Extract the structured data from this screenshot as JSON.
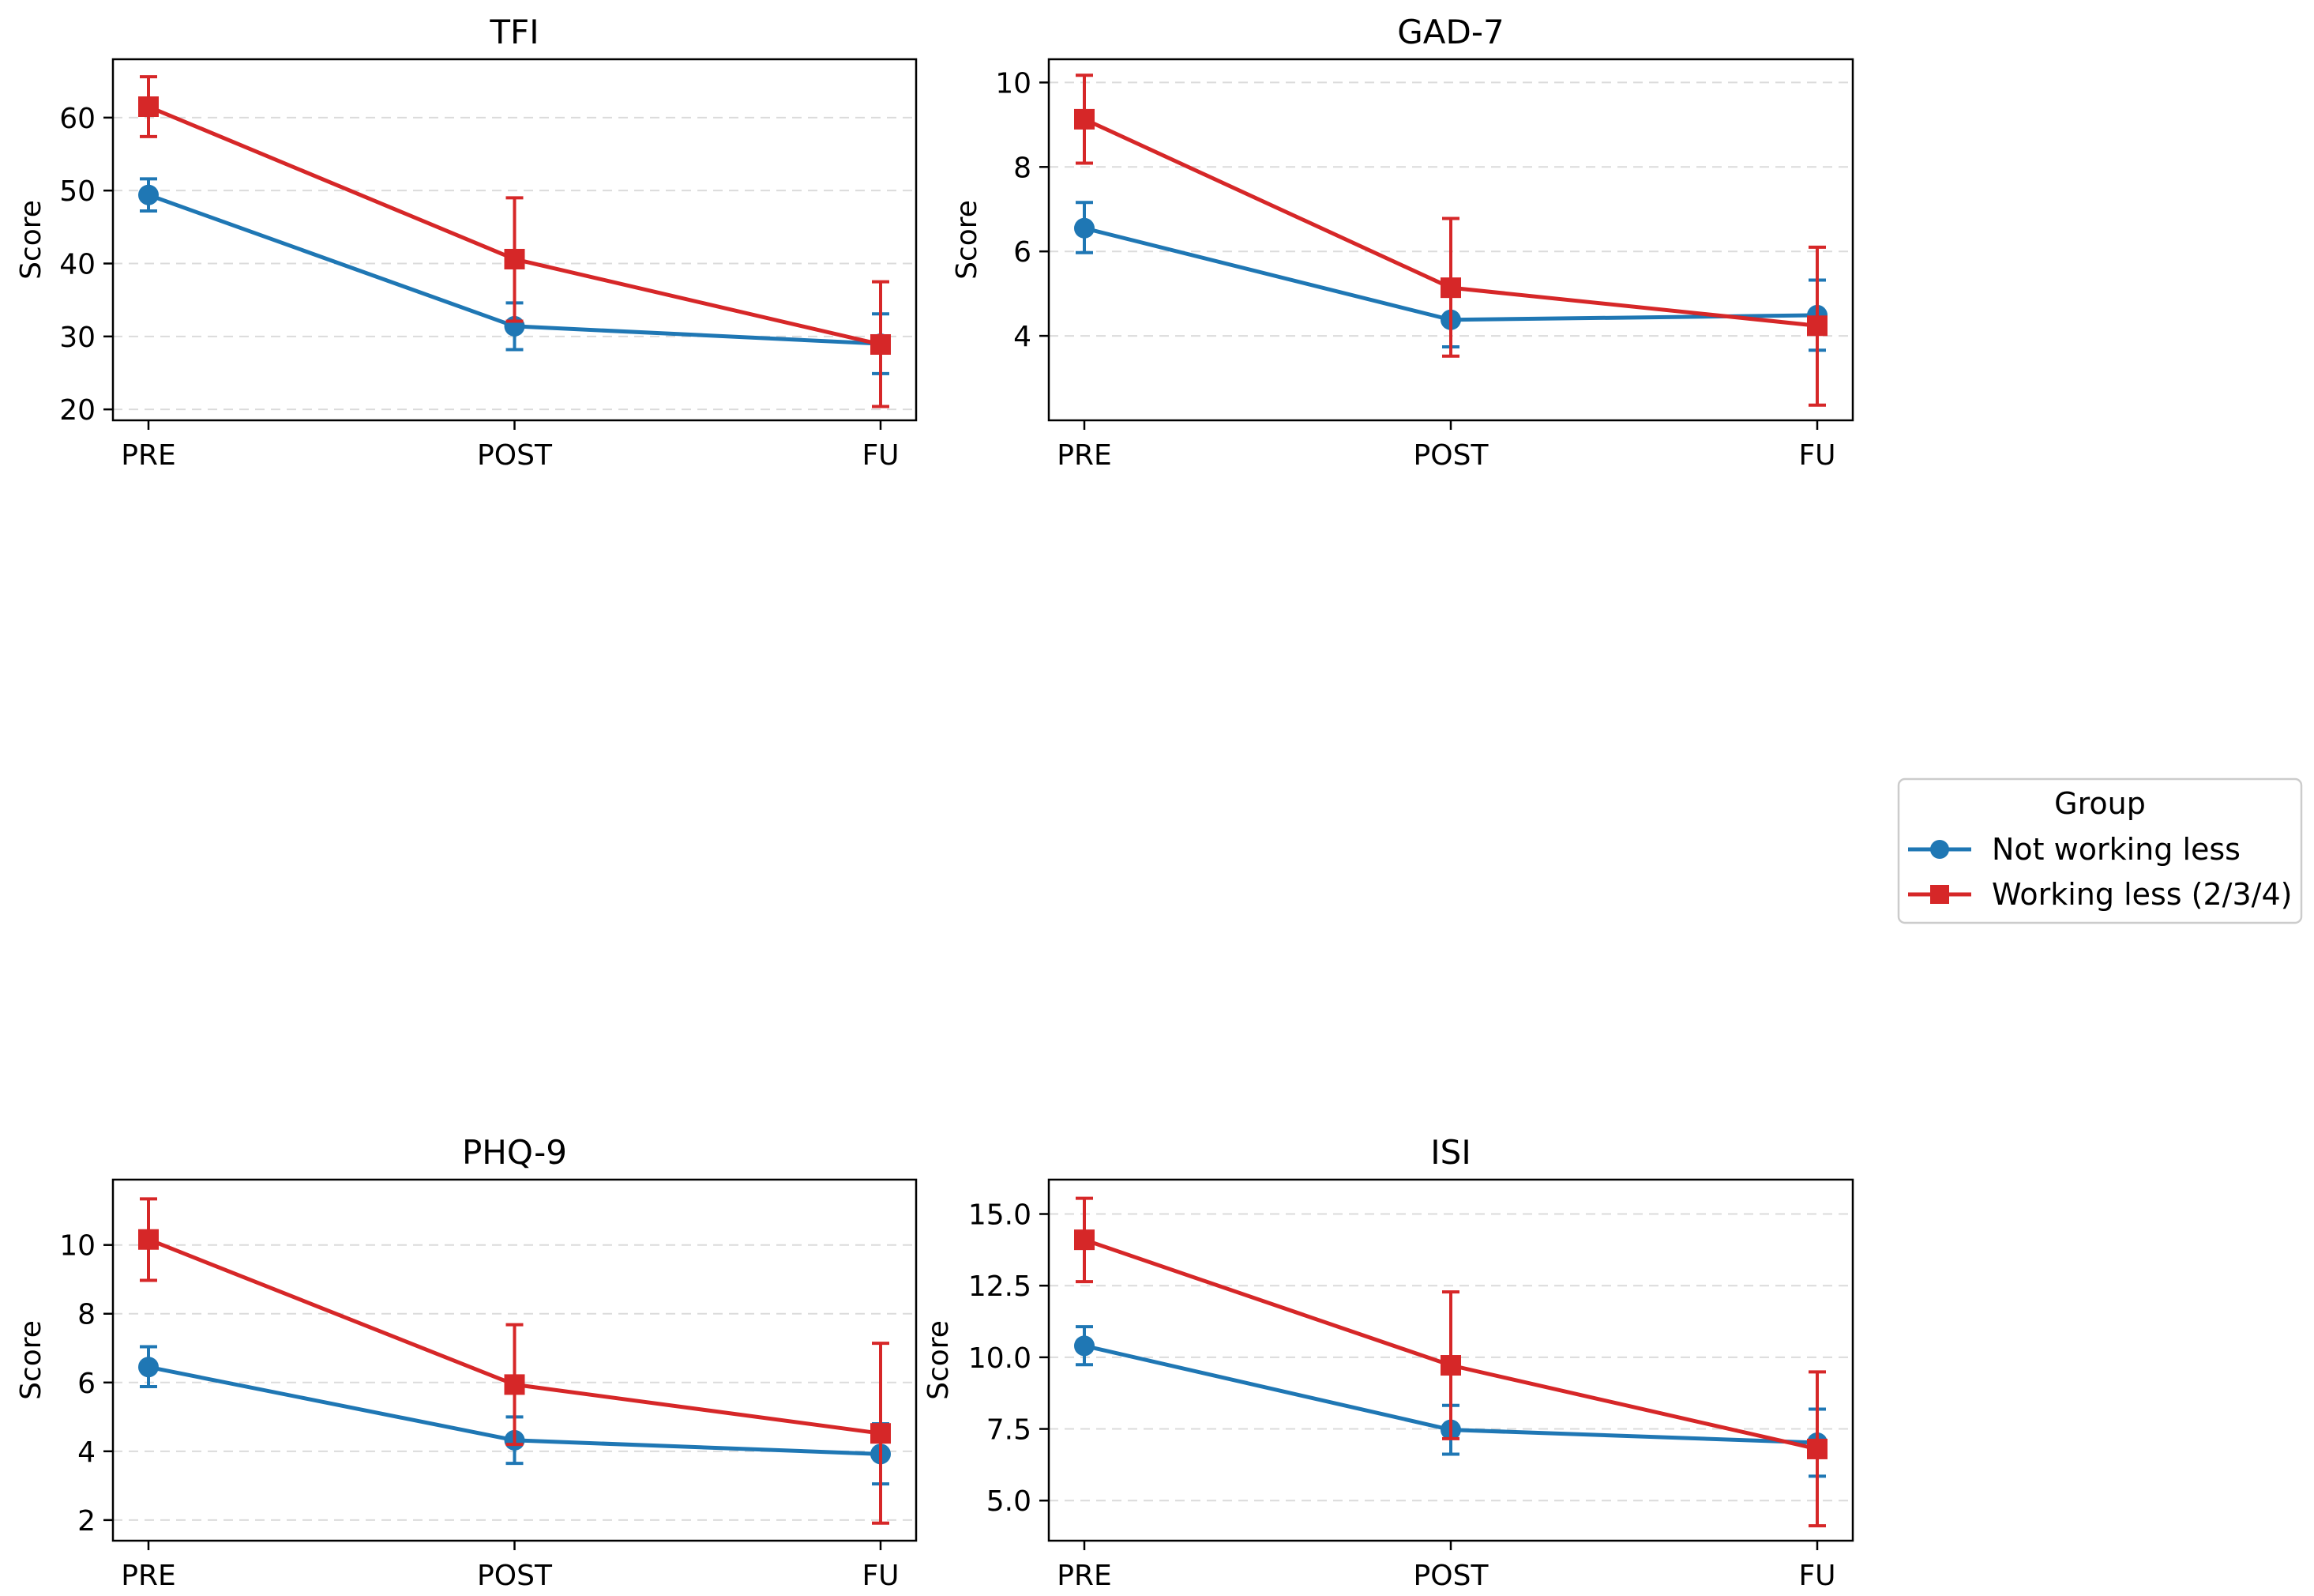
{
  "legend": {
    "title": "Group",
    "entries": [
      {
        "label": "Not working less",
        "color": "#1f77b4",
        "marker": "circle"
      },
      {
        "label": "Working less (2/3/4)",
        "color": "#d62728",
        "marker": "square"
      }
    ]
  },
  "chart_data": [
    {
      "type": "line",
      "title": "TFI",
      "xlabel": "",
      "ylabel": "Score",
      "categories": [
        "PRE",
        "POST",
        "FU"
      ],
      "ylim": [
        18.5,
        68
      ],
      "yticks": [
        20,
        30,
        40,
        50,
        60
      ],
      "grid": "y-dashed",
      "series": [
        {
          "name": "Not working less",
          "values": [
            49.4,
            31.4,
            29.0
          ],
          "err_low": [
            47.2,
            28.2,
            24.9
          ],
          "err_high": [
            51.6,
            34.6,
            33.1
          ]
        },
        {
          "name": "Working less (2/3/4)",
          "values": [
            61.5,
            40.6,
            28.9
          ],
          "err_low": [
            57.4,
            32.1,
            20.4
          ],
          "err_high": [
            65.6,
            49.0,
            37.5
          ]
        }
      ]
    },
    {
      "type": "line",
      "title": "GAD-7",
      "xlabel": "",
      "ylabel": "Score",
      "categories": [
        "PRE",
        "POST",
        "FU"
      ],
      "ylim": [
        2.0,
        10.55
      ],
      "yticks": [
        4,
        6,
        8,
        10
      ],
      "grid": "y-dashed",
      "series": [
        {
          "name": "Not working less",
          "values": [
            6.55,
            4.38,
            4.49
          ],
          "err_low": [
            5.97,
            3.74,
            3.66
          ],
          "err_high": [
            7.16,
            5.02,
            5.32
          ]
        },
        {
          "name": "Working less (2/3/4)",
          "values": [
            9.13,
            5.14,
            4.24
          ],
          "err_low": [
            8.09,
            3.52,
            2.36
          ],
          "err_high": [
            10.17,
            6.78,
            6.1
          ]
        }
      ]
    },
    {
      "type": "line",
      "title": "PHQ-9",
      "xlabel": "",
      "ylabel": "Score",
      "categories": [
        "PRE",
        "POST",
        "FU"
      ],
      "ylim": [
        1.4,
        11.9
      ],
      "yticks": [
        2,
        4,
        6,
        8,
        10
      ],
      "grid": "y-dashed",
      "series": [
        {
          "name": "Not working less",
          "values": [
            6.45,
            4.32,
            3.92
          ],
          "err_low": [
            5.88,
            3.65,
            3.05
          ],
          "err_high": [
            7.04,
            5.0,
            4.8
          ]
        },
        {
          "name": "Working less (2/3/4)",
          "values": [
            10.16,
            5.94,
            4.52
          ],
          "err_low": [
            8.97,
            4.2,
            1.91
          ],
          "err_high": [
            11.34,
            7.68,
            7.14
          ]
        }
      ]
    },
    {
      "type": "line",
      "title": "ISI",
      "xlabel": "",
      "ylabel": "Score",
      "categories": [
        "PRE",
        "POST",
        "FU"
      ],
      "ylim": [
        3.6,
        16.2
      ],
      "yticks": [
        5.0,
        7.5,
        10.0,
        12.5,
        15.0
      ],
      "ytick_labels": [
        "5.0",
        "7.5",
        "10.0",
        "12.5",
        "15.0"
      ],
      "grid": "y-dashed",
      "series": [
        {
          "name": "Not working less",
          "values": [
            10.4,
            7.47,
            7.02
          ],
          "err_low": [
            9.74,
            6.62,
            5.85
          ],
          "err_high": [
            11.07,
            8.32,
            8.19
          ]
        },
        {
          "name": "Working less (2/3/4)",
          "values": [
            14.1,
            9.72,
            6.8
          ],
          "err_low": [
            12.64,
            7.16,
            4.12
          ],
          "err_high": [
            15.55,
            12.28,
            9.49
          ]
        }
      ]
    }
  ]
}
